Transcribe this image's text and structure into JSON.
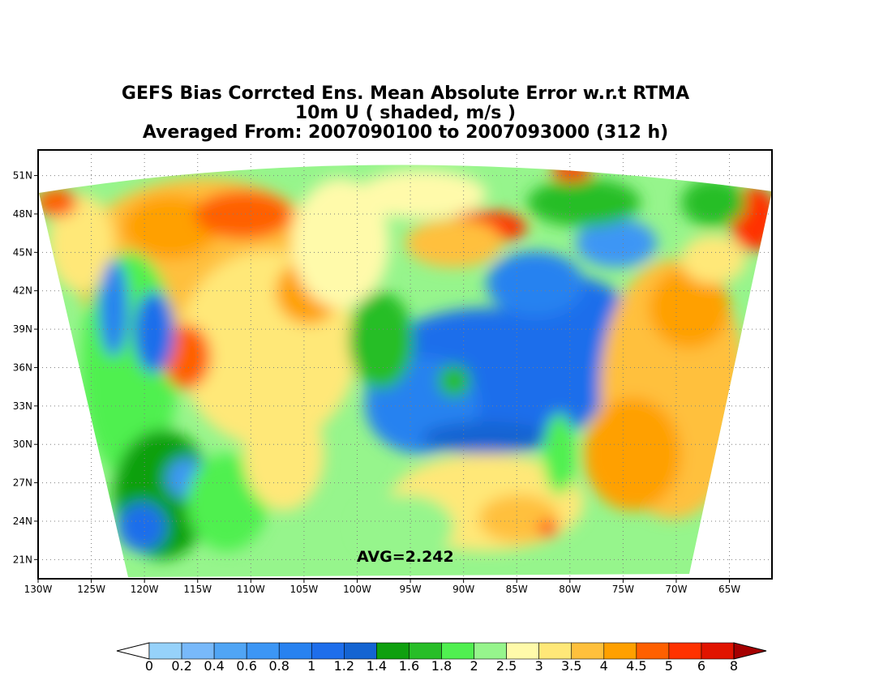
{
  "title": {
    "line1": "GEFS Bias Corrcted Ens. Mean Absolute Error w.r.t RTMA",
    "line2": "10m U ( shaded, m/s )",
    "line3": "Averaged From: 2007090100 to 2007093000 (312 h)"
  },
  "avg_label": "AVG=2.242",
  "map": {
    "lon_range": [
      -130,
      -61
    ],
    "lat_range": [
      19.5,
      53
    ],
    "lon_ticks": [
      "130W",
      "125W",
      "120W",
      "115W",
      "110W",
      "105W",
      "100W",
      "95W",
      "90W",
      "85W",
      "80W",
      "75W",
      "70W",
      "65W"
    ],
    "lat_ticks": [
      "51N",
      "48N",
      "45N",
      "42N",
      "39N",
      "36N",
      "33N",
      "30N",
      "27N",
      "24N",
      "21N"
    ],
    "grid": "dotted",
    "projection_domain_shape": "conic wedge (curved top edge, slanted sides)"
  },
  "colorbar": {
    "labels": [
      "0",
      "0.2",
      "0.4",
      "0.6",
      "0.8",
      "1",
      "1.2",
      "1.4",
      "1.6",
      "1.8",
      "2",
      "2.5",
      "3",
      "3.5",
      "4",
      "4.5",
      "5",
      "6",
      "8"
    ],
    "colors": [
      "#96d2fa",
      "#78b9fa",
      "#50a5f5",
      "#3c96f5",
      "#2882f0",
      "#1e6eeb",
      "#1464d2",
      "#0fa00f",
      "#28be28",
      "#50f050",
      "#96f58c",
      "#fffaaa",
      "#ffe878",
      "#ffc03c",
      "#ffa000",
      "#ff6000",
      "#ff3200",
      "#e11400",
      "#a50000"
    ],
    "under_color": "#ffffff",
    "over_color": "#a50000"
  }
}
